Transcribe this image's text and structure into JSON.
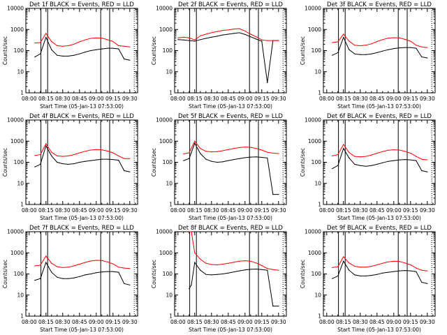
{
  "figure": {
    "background": "#ffffff",
    "series_colors": {
      "events": "#000000",
      "lld": "#ff0000"
    },
    "x_tick_labels": [
      "08:00",
      "08:15",
      "08:30",
      "08:45",
      "09:00",
      "09:15",
      "09:30"
    ],
    "y_tick_labels": [
      "1",
      "10",
      "100",
      "1000",
      "10000"
    ]
  },
  "chart_data": [
    {
      "type": "line",
      "title": "Det 1f BLACK = Events, RED = LLD",
      "xlabel": "Start Time (05-Jan-13 07:53:00)",
      "ylabel": "Counts/sec",
      "y_scale": "log",
      "ylim": [
        1,
        10000
      ],
      "x_unit": "minutes after 08:00",
      "xlim": [
        -3,
        97
      ],
      "grid": false,
      "x": [
        5,
        10,
        15,
        20,
        25,
        30,
        35,
        40,
        45,
        50,
        55,
        60,
        65,
        70,
        75,
        80,
        85,
        90
      ],
      "series": [
        {
          "name": "Events",
          "values": [
            50,
            70,
            420,
            110,
            60,
            55,
            55,
            60,
            70,
            85,
            100,
            110,
            120,
            130,
            130,
            120,
            40,
            35
          ]
        },
        {
          "name": "LLD",
          "values": [
            230,
            240,
            650,
            270,
            170,
            160,
            170,
            200,
            260,
            320,
            380,
            400,
            390,
            330,
            270,
            170,
            160,
            150
          ]
        }
      ],
      "annotations": {
        "vertical_lines": [
          10.5,
          16.5,
          64,
          72
        ],
        "dotted_lines": [
          94
        ]
      }
    },
    {
      "type": "line",
      "title": "Det 2f BLACK = Events, RED = LLD",
      "xlabel": "Start Time (05-Jan-13 07:53:00)",
      "ylabel": "Counts/sec",
      "y_scale": "log",
      "ylim": [
        1,
        10000
      ],
      "x_unit": "minutes after 08:00",
      "xlim": [
        -3,
        97
      ],
      "grid": false,
      "x": [
        0,
        5,
        10,
        15,
        20,
        25,
        30,
        35,
        40,
        45,
        50,
        55,
        60,
        65,
        70,
        75,
        80,
        85,
        90
      ],
      "series": [
        {
          "name": "Events",
          "values": [
            330,
            320,
            300,
            280,
            330,
            380,
            430,
            480,
            550,
            600,
            650,
            700,
            580,
            450,
            350,
            280,
            3,
            300,
            300
          ]
        },
        {
          "name": "LLD",
          "values": [
            400,
            430,
            400,
            320,
            500,
            600,
            700,
            800,
            900,
            950,
            1050,
            1100,
            850,
            600,
            450,
            320,
            300,
            300,
            300
          ]
        }
      ],
      "annotations": {
        "vertical_lines": [
          10.5,
          16.5,
          64,
          72
        ],
        "dotted_lines": [
          94
        ]
      }
    },
    {
      "type": "line",
      "title": "Det 3f BLACK = Events, RED = LLD",
      "xlabel": "Start Time (05-Jan-13 07:53:00)",
      "ylabel": "Counts/sec",
      "y_scale": "log",
      "ylim": [
        1,
        10000
      ],
      "x_unit": "minutes after 08:00",
      "xlim": [
        -3,
        97
      ],
      "grid": false,
      "x": [
        5,
        10,
        15,
        20,
        25,
        30,
        35,
        40,
        45,
        50,
        55,
        60,
        65,
        70,
        75,
        80,
        85,
        90
      ],
      "series": [
        {
          "name": "Events",
          "values": [
            60,
            80,
            420,
            110,
            70,
            65,
            65,
            70,
            80,
            95,
            110,
            125,
            135,
            140,
            140,
            130,
            50,
            45
          ]
        },
        {
          "name": "LLD",
          "values": [
            240,
            260,
            600,
            280,
            180,
            170,
            180,
            210,
            270,
            330,
            390,
            410,
            400,
            340,
            280,
            180,
            150,
            140
          ]
        }
      ],
      "annotations": {
        "vertical_lines": [
          10.5,
          16.5,
          64,
          72
        ],
        "dotted_lines": [
          94
        ]
      }
    },
    {
      "type": "line",
      "title": "Det 4f BLACK = Events, RED = LLD",
      "xlabel": "Start Time (05-Jan-13 07:53:00)",
      "ylabel": "Counts/sec",
      "y_scale": "log",
      "ylim": [
        1,
        10000
      ],
      "x_unit": "minutes after 08:00",
      "xlim": [
        -3,
        97
      ],
      "grid": false,
      "x": [
        5,
        10,
        15,
        20,
        25,
        30,
        35,
        40,
        45,
        50,
        55,
        60,
        65,
        70,
        75,
        80,
        85,
        90
      ],
      "series": [
        {
          "name": "Events",
          "values": [
            60,
            80,
            600,
            200,
            100,
            85,
            80,
            85,
            100,
            110,
            120,
            130,
            140,
            140,
            135,
            125,
            40,
            35
          ]
        },
        {
          "name": "LLD",
          "values": [
            210,
            230,
            750,
            300,
            200,
            190,
            200,
            230,
            280,
            330,
            380,
            400,
            390,
            340,
            280,
            200,
            150,
            150
          ]
        }
      ],
      "annotations": {
        "vertical_lines": [
          10.5,
          16.5,
          64,
          72
        ],
        "dotted_lines": [
          94
        ]
      }
    },
    {
      "type": "line",
      "title": "Det 5f BLACK = Events, RED = LLD",
      "xlabel": "Start Time (05-Jan-13 07:53:00)",
      "ylabel": "Counts/sec",
      "y_scale": "log",
      "ylim": [
        1,
        10000
      ],
      "x_unit": "minutes after 08:00",
      "xlim": [
        -3,
        97
      ],
      "grid": false,
      "x": [
        5,
        10,
        15,
        20,
        25,
        30,
        35,
        40,
        45,
        50,
        55,
        60,
        65,
        70,
        75,
        80,
        85,
        90
      ],
      "series": [
        {
          "name": "Events",
          "values": [
            120,
            150,
            800,
            260,
            140,
            110,
            100,
            105,
            120,
            135,
            150,
            165,
            175,
            180,
            170,
            160,
            3,
            3
          ]
        },
        {
          "name": "LLD",
          "values": [
            250,
            280,
            1000,
            450,
            330,
            310,
            320,
            350,
            400,
            450,
            500,
            520,
            510,
            450,
            380,
            300,
            270,
            260
          ]
        }
      ],
      "annotations": {
        "vertical_lines": [
          10.5,
          16.5,
          64,
          72
        ],
        "dotted_lines": [
          94
        ]
      }
    },
    {
      "type": "line",
      "title": "Det 6f BLACK = Events, RED = LLD",
      "xlabel": "Start Time (05-Jan-13 07:53:00)",
      "ylabel": "Counts/sec",
      "y_scale": "log",
      "ylim": [
        1,
        10000
      ],
      "x_unit": "minutes after 08:00",
      "xlim": [
        -3,
        97
      ],
      "grid": false,
      "x": [
        5,
        10,
        15,
        20,
        25,
        30,
        35,
        40,
        45,
        50,
        55,
        60,
        65,
        70,
        75,
        80,
        85,
        90
      ],
      "series": [
        {
          "name": "Events",
          "values": [
            50,
            70,
            450,
            160,
            80,
            70,
            65,
            70,
            80,
            95,
            110,
            120,
            130,
            135,
            130,
            120,
            40,
            35
          ]
        },
        {
          "name": "LLD",
          "values": [
            200,
            230,
            700,
            290,
            190,
            180,
            190,
            220,
            270,
            320,
            370,
            390,
            380,
            330,
            270,
            190,
            140,
            130
          ]
        }
      ],
      "annotations": {
        "vertical_lines": [
          10.5,
          16.5,
          64,
          72
        ],
        "dotted_lines": [
          94
        ]
      }
    },
    {
      "type": "line",
      "title": "Det 7f BLACK = Events, RED = LLD",
      "xlabel": "Start Time (05-Jan-13 07:53:00)",
      "ylabel": "Counts/sec",
      "y_scale": "log",
      "ylim": [
        1,
        10000
      ],
      "x_unit": "minutes after 08:00",
      "xlim": [
        -3,
        97
      ],
      "grid": false,
      "x": [
        5,
        10,
        15,
        20,
        25,
        30,
        35,
        40,
        45,
        50,
        55,
        60,
        65,
        70,
        75,
        80,
        85,
        90
      ],
      "series": [
        {
          "name": "Events",
          "values": [
            50,
            60,
            350,
            120,
            70,
            60,
            60,
            65,
            75,
            90,
            100,
            115,
            125,
            130,
            130,
            120,
            35,
            30
          ]
        },
        {
          "name": "LLD",
          "values": [
            240,
            260,
            700,
            320,
            220,
            200,
            210,
            240,
            290,
            350,
            410,
            440,
            430,
            370,
            300,
            210,
            190,
            180
          ]
        }
      ],
      "annotations": {
        "vertical_lines": [
          10.5,
          16.5,
          64,
          72
        ],
        "dotted_lines": [
          94
        ]
      }
    },
    {
      "type": "line",
      "title": "Det 8f BLACK = Events, RED = LLD",
      "xlabel": "Start Time (05-Jan-13 07:53:00)",
      "ylabel": "Counts/sec",
      "y_scale": "log",
      "ylim": [
        1,
        10000
      ],
      "x_unit": "minutes after 08:00",
      "xlim": [
        -3,
        97
      ],
      "grid": false,
      "x": [
        10,
        12,
        15,
        20,
        25,
        30,
        35,
        40,
        45,
        50,
        55,
        60,
        65,
        70,
        75,
        80,
        85,
        90
      ],
      "series": [
        {
          "name": "Events",
          "values": [
            20,
            30,
            350,
            150,
            95,
            90,
            95,
            100,
            110,
            125,
            140,
            155,
            165,
            170,
            160,
            150,
            3,
            3
          ]
        },
        {
          "name": "LLD",
          "values": [
            10000,
            10000,
            1000,
            500,
            320,
            280,
            270,
            290,
            320,
            360,
            400,
            420,
            400,
            330,
            250,
            180,
            160,
            150
          ]
        }
      ],
      "annotations": {
        "vertical_lines": [
          10.5,
          16.5,
          64,
          72
        ],
        "dotted_lines": [
          94
        ]
      }
    },
    {
      "type": "line",
      "title": "Det 9f BLACK = Events, RED = LLD",
      "xlabel": "Start Time (05-Jan-13 07:53:00)",
      "ylabel": "Counts/sec",
      "y_scale": "log",
      "ylim": [
        1,
        10000
      ],
      "x_unit": "minutes after 08:00",
      "xlim": [
        -3,
        97
      ],
      "grid": false,
      "x": [
        5,
        10,
        15,
        20,
        25,
        30,
        35,
        40,
        45,
        50,
        55,
        60,
        65,
        70,
        75,
        80,
        85,
        90
      ],
      "series": [
        {
          "name": "Events",
          "values": [
            60,
            80,
            400,
            150,
            90,
            80,
            80,
            85,
            95,
            110,
            120,
            130,
            140,
            145,
            140,
            130,
            40,
            35
          ]
        },
        {
          "name": "LLD",
          "values": [
            200,
            220,
            650,
            330,
            230,
            210,
            210,
            230,
            270,
            320,
            370,
            400,
            390,
            330,
            270,
            190,
            150,
            140
          ]
        }
      ],
      "annotations": {
        "vertical_lines": [
          10.5,
          16.5,
          64,
          72
        ],
        "dotted_lines": [
          94
        ]
      }
    }
  ]
}
